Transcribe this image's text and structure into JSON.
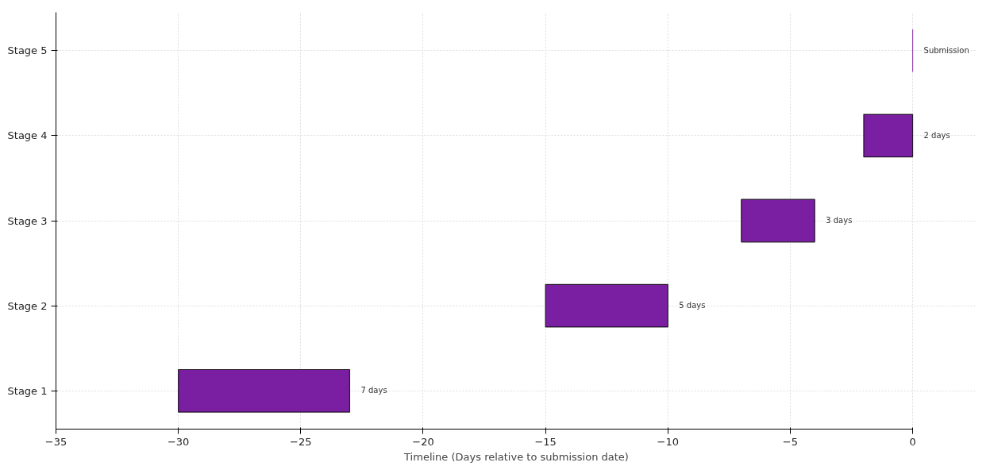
{
  "chart_data": {
    "type": "bar",
    "orientation": "horizontal",
    "xlabel": "Timeline (Days relative to submission date)",
    "categories": [
      "Stage 5",
      "Stage 4",
      "Stage 3",
      "Stage 2",
      "Stage 1"
    ],
    "base": [
      0,
      -2,
      -7,
      -15,
      -30
    ],
    "values": [
      0,
      2,
      3,
      5,
      7
    ],
    "value_labels": [
      "Submission",
      "2 days",
      "3 days",
      "5 days",
      "7 days"
    ],
    "color": "#7b1fa2",
    "xlim": [
      -35,
      0
    ],
    "xticks": [
      {
        "value": -35,
        "label": "−35"
      },
      {
        "value": -30,
        "label": "−30"
      },
      {
        "value": -25,
        "label": "−25"
      },
      {
        "value": -20,
        "label": "−20"
      },
      {
        "value": -15,
        "label": "−15"
      },
      {
        "value": -10,
        "label": "−10"
      },
      {
        "value": -5,
        "label": "−5"
      },
      0
    ],
    "grid": true
  }
}
